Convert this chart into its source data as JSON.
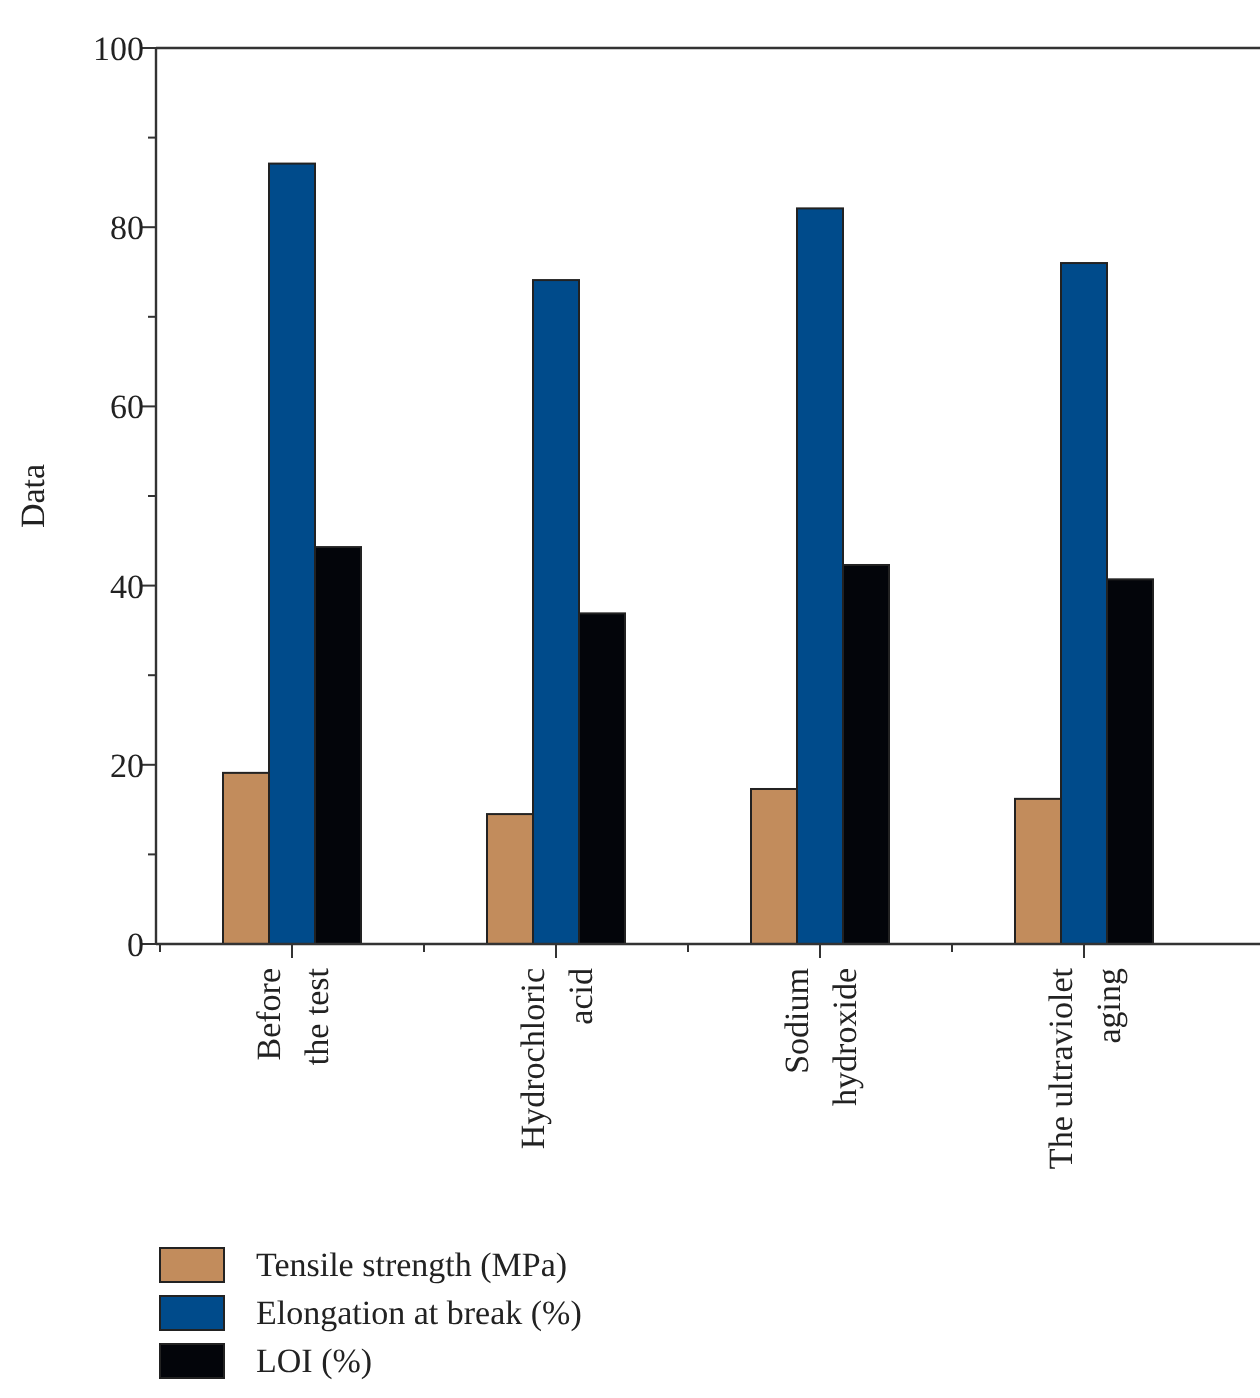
{
  "chart_data": {
    "type": "bar",
    "ylabel": "Data",
    "categories": [
      "Before\nthe test",
      "Hydrochloric\nacid",
      "Sodium\nhydroxide",
      "The ultraviolet\naging"
    ],
    "series": [
      {
        "name": "Tensile strength (MPa)",
        "color": "#c28c5c",
        "values": [
          19.1,
          14.5,
          17.3,
          16.2
        ]
      },
      {
        "name": "Elongation at break (%)",
        "color": "#004b8b",
        "values": [
          87.1,
          74.1,
          82.1,
          76.0
        ]
      },
      {
        "name": "LOI (%)",
        "color": "#03050a",
        "values": [
          44.3,
          36.9,
          42.3,
          40.7
        ]
      }
    ],
    "ylim": [
      0,
      100
    ],
    "yticks": [
      0,
      20,
      40,
      60,
      80,
      100
    ],
    "grid": false,
    "legend": "bottom left"
  }
}
